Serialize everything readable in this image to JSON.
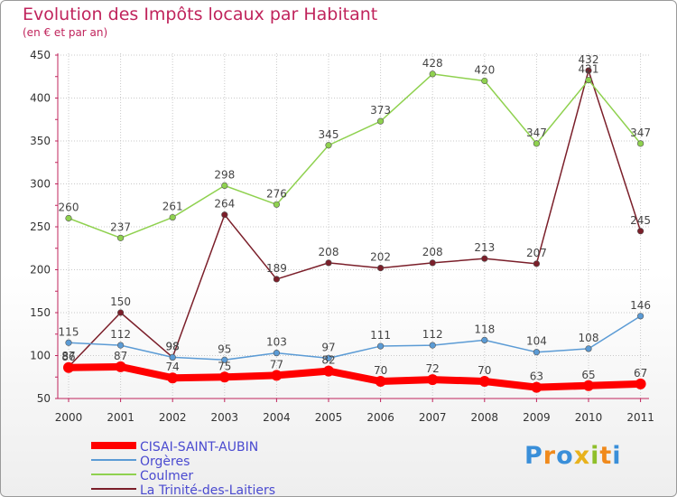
{
  "title": "Evolution des Impôts locaux par Habitant",
  "subtitle": "(en € et par an)",
  "logo": "Proxiti",
  "colors": {
    "title": "#c0245c",
    "axis": "#c0245c",
    "grid": "#c9c9c9"
  },
  "chart_data": {
    "type": "line",
    "title": "Evolution des Impôts locaux par Habitant",
    "subtitle": "(en € et par an)",
    "xlabel": "",
    "ylabel": "",
    "ylim": [
      50,
      450
    ],
    "yticks": [
      50,
      100,
      150,
      200,
      250,
      300,
      350,
      400,
      450
    ],
    "grid": true,
    "legend_position": "bottom-left",
    "x": [
      "2000",
      "2001",
      "2002",
      "2003",
      "2004",
      "2005",
      "2006",
      "2007",
      "2008",
      "2009",
      "2010",
      "2011"
    ],
    "series": [
      {
        "name": "CISAI-SAINT-AUBIN",
        "color": "#ff0000",
        "values": [
          86,
          87,
          74,
          75,
          77,
          82,
          70,
          72,
          70,
          63,
          65,
          67
        ]
      },
      {
        "name": "Orgères",
        "color": "#5b9bd5",
        "values": [
          115,
          112,
          98,
          95,
          103,
          97,
          111,
          112,
          118,
          104,
          108,
          146
        ]
      },
      {
        "name": "Coulmer",
        "color": "#8fd14f",
        "values": [
          260,
          237,
          261,
          298,
          276,
          345,
          373,
          428,
          420,
          347,
          421,
          347
        ]
      },
      {
        "name": "La Trinité-des-Laitiers",
        "color": "#7b1f2a",
        "values": [
          87,
          150,
          98,
          264,
          189,
          208,
          202,
          208,
          213,
          207,
          432,
          245
        ]
      }
    ]
  }
}
